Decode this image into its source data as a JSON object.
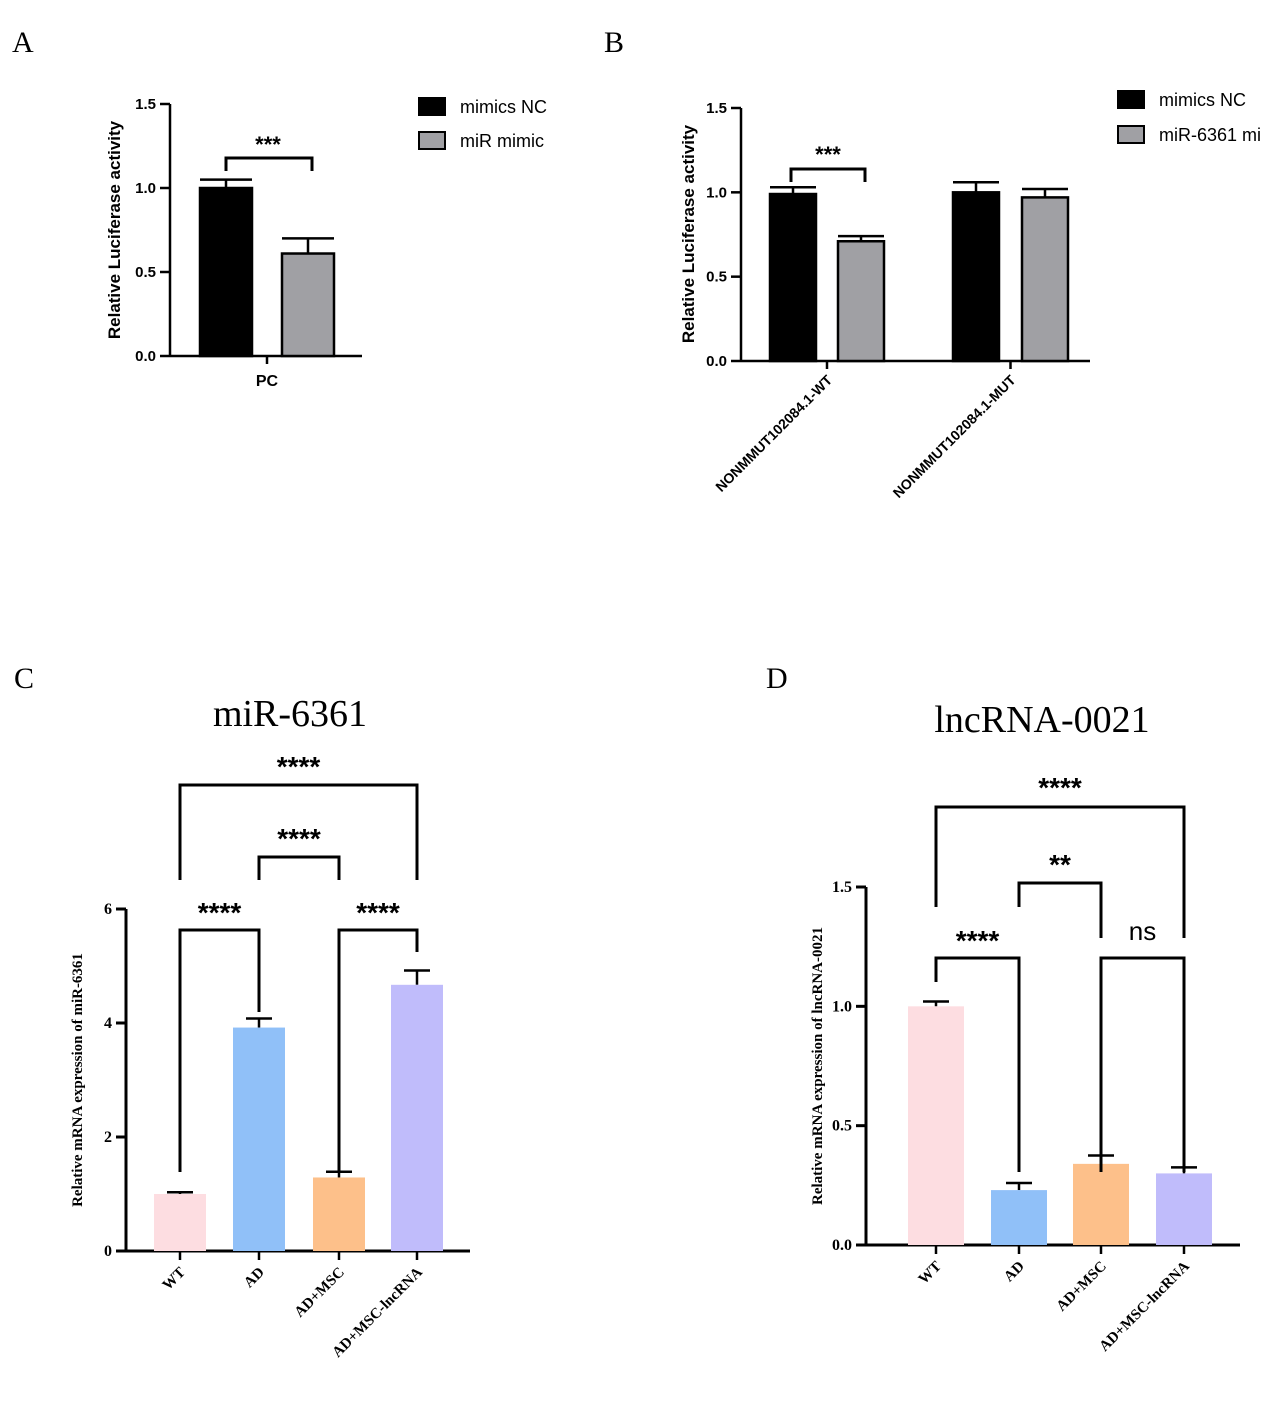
{
  "panels": {
    "A": {
      "letter": "A"
    },
    "B": {
      "letter": "B"
    },
    "C": {
      "letter": "C"
    },
    "D": {
      "letter": "D"
    }
  },
  "chart_data": [
    {
      "id": "A",
      "type": "bar",
      "title": "",
      "ylabel": "Relative Luciferase activity",
      "xlabel": "",
      "ylim": [
        0,
        1.5
      ],
      "yticks": [
        "0.0",
        "0.5",
        "1.0",
        "1.5"
      ],
      "categories": [
        "PC"
      ],
      "legend_position": "top-right",
      "series": [
        {
          "name": "mimics NC",
          "color": "#000000",
          "values": [
            1.0
          ],
          "errors": [
            0.05
          ]
        },
        {
          "name": "miR mimic",
          "color": "#a0a0a4",
          "values": [
            0.61
          ],
          "errors": [
            0.09
          ]
        }
      ],
      "significance": [
        {
          "label": "***"
        }
      ]
    },
    {
      "id": "B",
      "type": "bar",
      "title": "",
      "ylabel": "Relative Luciferase activity",
      "xlabel": "",
      "ylim": [
        0,
        1.5
      ],
      "yticks": [
        "0.0",
        "0.5",
        "1.0",
        "1.5"
      ],
      "categories": [
        "NONMMUT102084.1-WT",
        "NONMMUT102084.1-MUT"
      ],
      "legend_position": "top-right",
      "series": [
        {
          "name": "mimics NC",
          "color": "#000000",
          "values": [
            0.99,
            1.0
          ],
          "errors": [
            0.04,
            0.06
          ]
        },
        {
          "name": "miR-6361 mi",
          "color": "#a0a0a4",
          "values": [
            0.71,
            0.97
          ],
          "errors": [
            0.03,
            0.05
          ]
        }
      ],
      "significance": [
        {
          "label": "***"
        }
      ]
    },
    {
      "id": "C",
      "type": "bar",
      "title": "miR-6361",
      "ylabel": "Relative mRNA expression of miR-6361",
      "xlabel": "",
      "ylim": [
        0,
        6
      ],
      "yticks": [
        "0",
        "2",
        "4",
        "6"
      ],
      "categories": [
        "WT",
        "AD",
        "AD+MSC",
        "AD+MSC-lncRNA"
      ],
      "colors": [
        "#fddde1",
        "#90c0f8",
        "#fdc08a",
        "#c0bcfb"
      ],
      "values": [
        1.0,
        3.92,
        1.29,
        4.67
      ],
      "errors": [
        0.03,
        0.16,
        0.1,
        0.25
      ],
      "significance": [
        {
          "label": "****"
        },
        {
          "label": "****"
        },
        {
          "label": "****"
        },
        {
          "label": "****"
        }
      ]
    },
    {
      "id": "D",
      "type": "bar",
      "title": "lncRNA-0021",
      "ylabel": "Relative mRNA expression of lncRNA-0021",
      "xlabel": "",
      "ylim": [
        0,
        1.5
      ],
      "yticks": [
        "0.0",
        "0.5",
        "1.0",
        "1.5"
      ],
      "categories": [
        "WT",
        "AD",
        "AD+MSC",
        "AD+MSC-lncRNA"
      ],
      "colors": [
        "#fddde1",
        "#90c0f8",
        "#fdc08a",
        "#c0bcfb"
      ],
      "values": [
        1.0,
        0.23,
        0.34,
        0.3
      ],
      "errors": [
        0.02,
        0.03,
        0.035,
        0.025
      ],
      "significance": [
        {
          "label": "****"
        },
        {
          "label": "**"
        },
        {
          "label": "****"
        },
        {
          "label": "ns"
        }
      ]
    }
  ]
}
